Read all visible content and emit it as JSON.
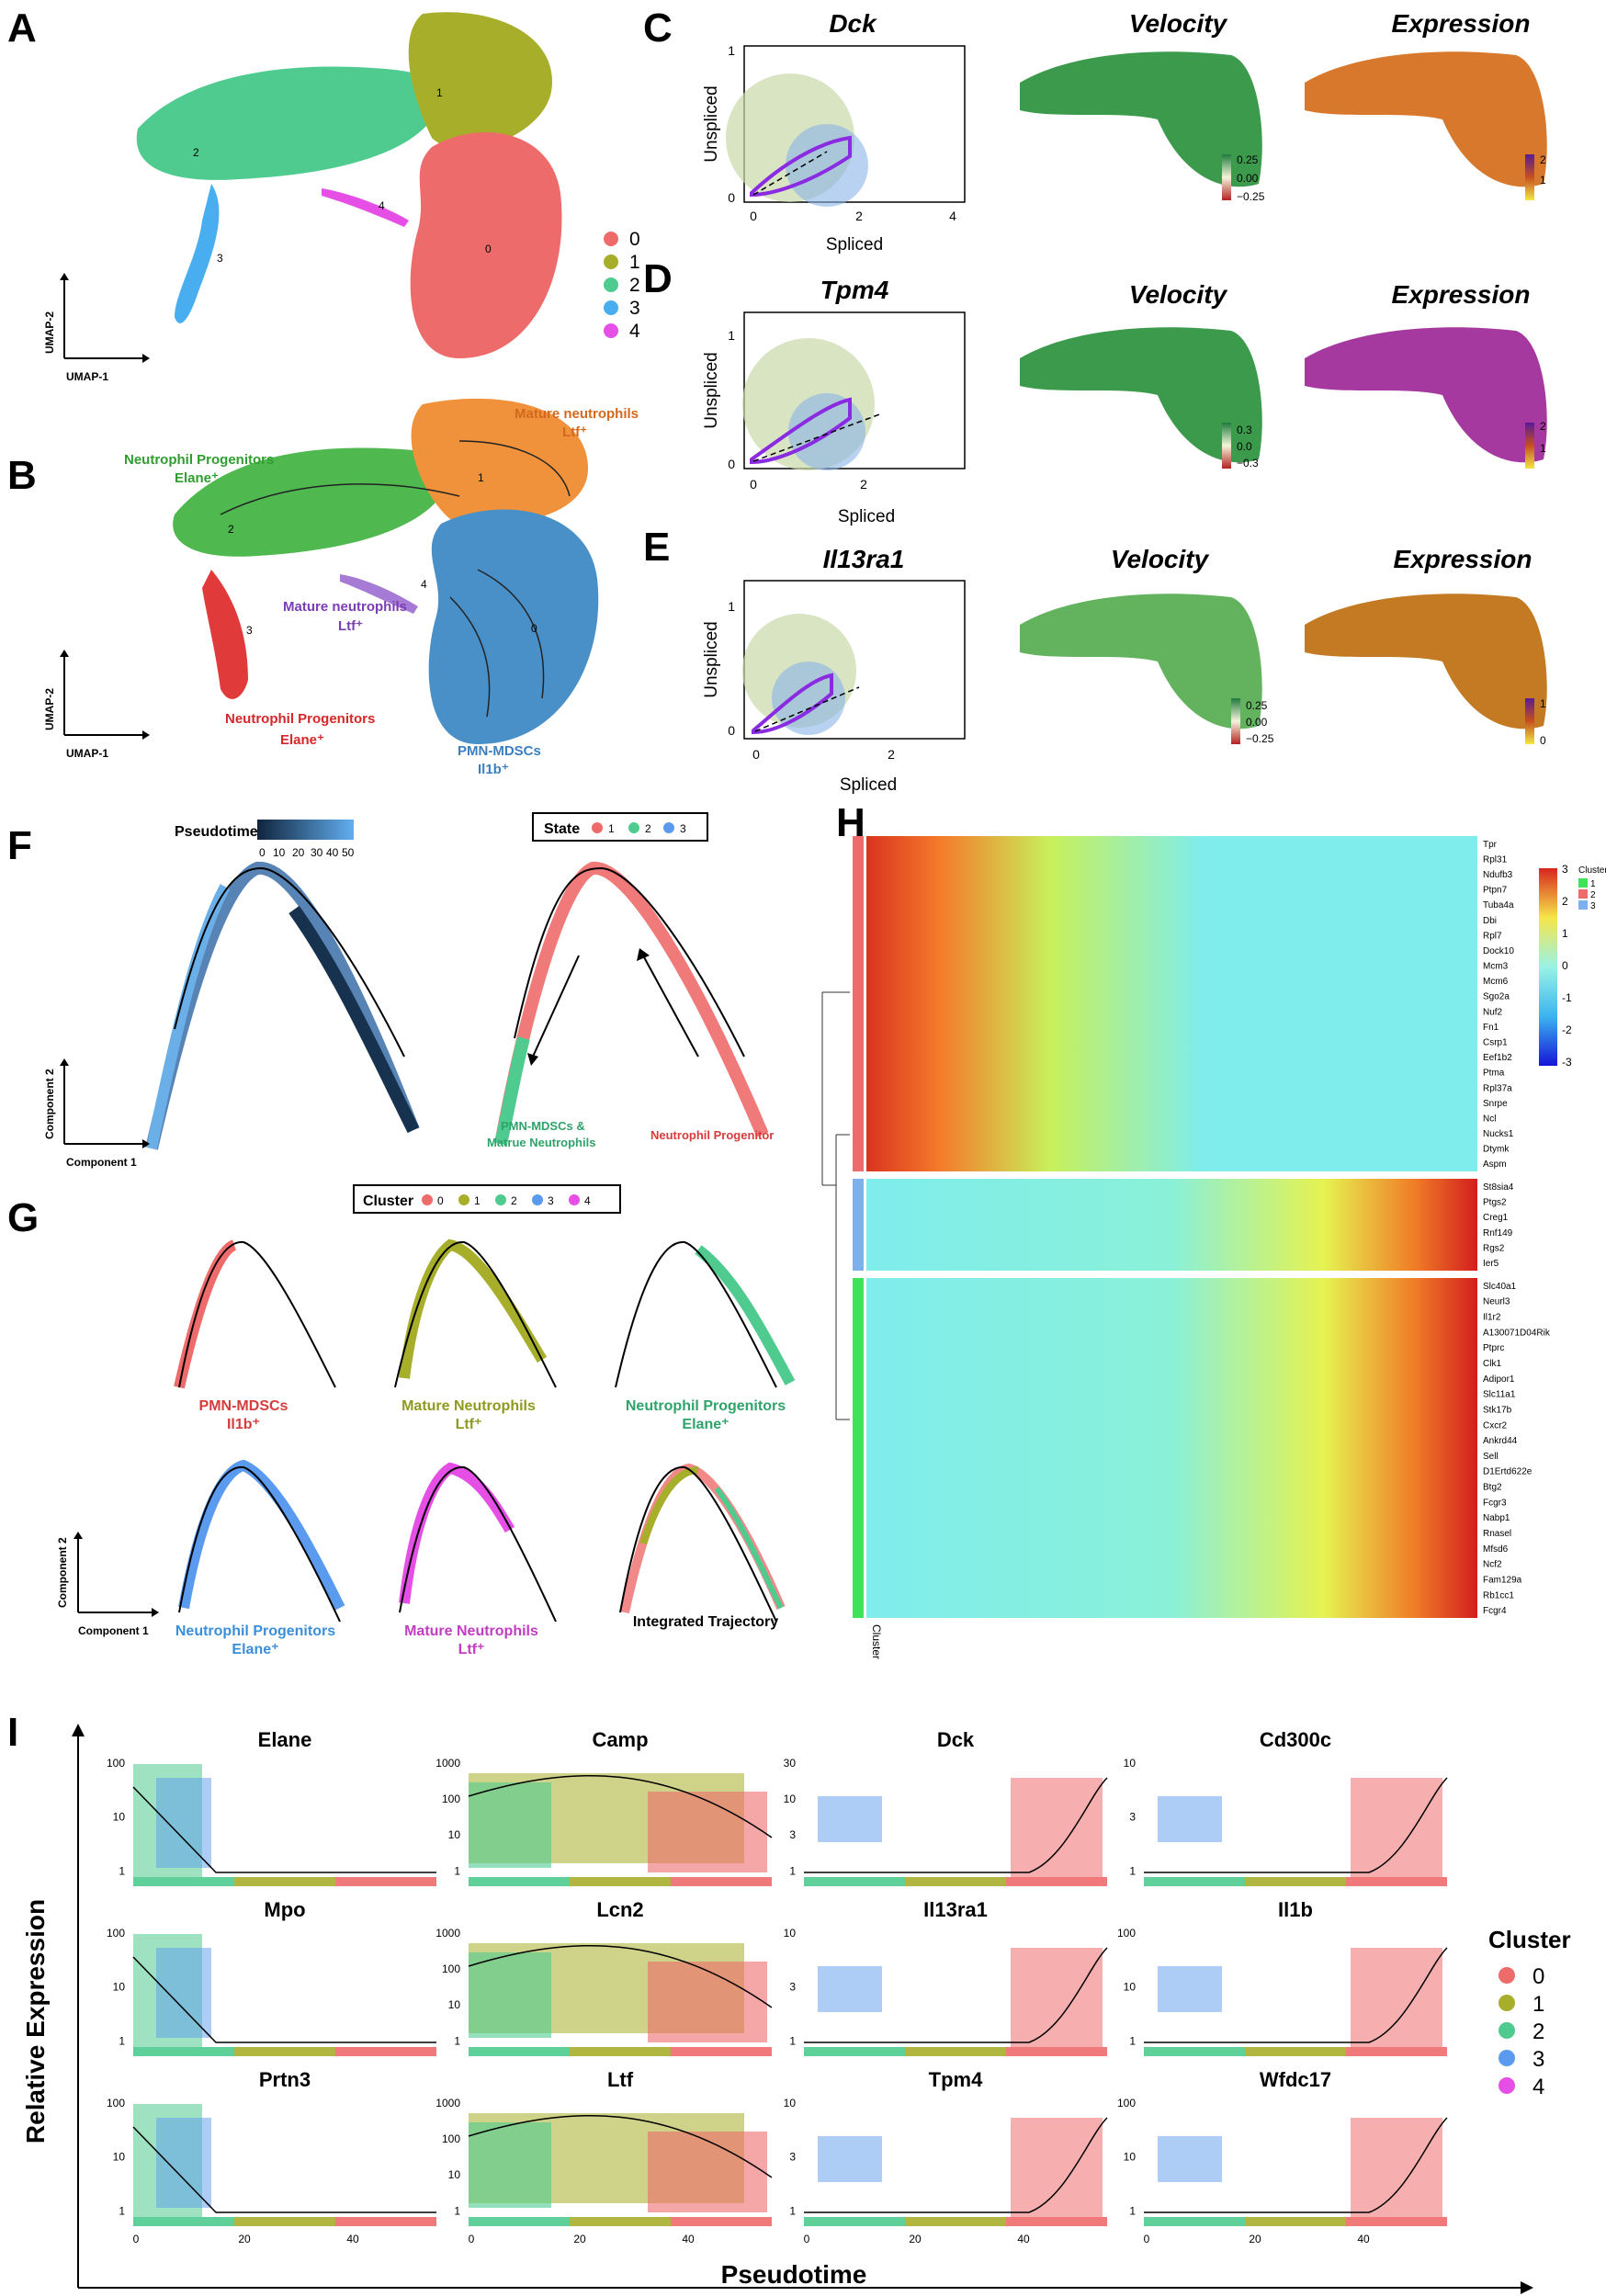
{
  "panels": {
    "A": {
      "label": "A",
      "axis_x": "UMAP-1",
      "axis_y": "UMAP-2",
      "clusters": [
        {
          "id": "0",
          "color": "#EE6B6B"
        },
        {
          "id": "1",
          "color": "#A7AE2A"
        },
        {
          "id": "2",
          "color": "#4FCB8F"
        },
        {
          "id": "3",
          "color": "#49AEEF"
        },
        {
          "id": "4",
          "color": "#E64FE6"
        }
      ]
    },
    "B": {
      "label": "B",
      "axis_x": "UMAP-1",
      "axis_y": "UMAP-2",
      "annotations": [
        {
          "text": "Mature neutrophils",
          "sub": "Ltf⁺",
          "color": "#D2691E"
        },
        {
          "text": "Neutrophil Progenitors",
          "sub": "Elane⁺",
          "color": "#2E9E2E"
        },
        {
          "text": "Mature neutrophils",
          "sub": "Ltf⁺",
          "color": "#7A3DB5"
        },
        {
          "text": "Neutrophil Progenitors",
          "sub": "Elane⁺",
          "color": "#D62728"
        },
        {
          "text": "PMN-MDSCs",
          "sub": "Il1b⁺",
          "color": "#3A7FBF"
        }
      ],
      "cluster_numbers": [
        "0",
        "1",
        "2",
        "3",
        "4"
      ]
    },
    "C": {
      "label": "C",
      "gene": "Dck",
      "yticks": [
        "1",
        "0"
      ],
      "xticks": [
        "0",
        "2",
        "4"
      ],
      "velocity_ticks": [
        "0.25",
        "0.00",
        "−0.25"
      ],
      "expr_ticks": [
        "2",
        "1"
      ]
    },
    "D": {
      "label": "D",
      "gene": "Tpm4",
      "yticks": [
        "1",
        "0"
      ],
      "xticks": [
        "0",
        "2"
      ],
      "velocity_ticks": [
        "0.3",
        "0.0",
        "−0.3"
      ],
      "expr_ticks": [
        "2",
        "1"
      ]
    },
    "E": {
      "label": "E",
      "gene": "Il13ra1",
      "yticks": [
        "1",
        "0"
      ],
      "xticks": [
        "0",
        "2"
      ],
      "velocity_ticks": [
        "0.25",
        "0.00",
        "−0.25"
      ],
      "expr_ticks": [
        "1",
        "0"
      ]
    },
    "CDE_common": {
      "xlabel": "Spliced",
      "ylabel": "Unspliced",
      "velocity_title": "Velocity",
      "expression_title": "Expression"
    },
    "F": {
      "label": "F",
      "pseudotime_title": "Pseudotime",
      "pseudotime_ticks": [
        "0",
        "10",
        "20",
        "30",
        "40",
        "50"
      ],
      "state_title": "State",
      "states": [
        {
          "id": "1",
          "color": "#EE6B6B"
        },
        {
          "id": "2",
          "color": "#4FCB8F"
        },
        {
          "id": "3",
          "color": "#5B9BEF"
        }
      ],
      "branch_left": "PMN-MDSCs &",
      "branch_left2": "Matrue Neutrophils",
      "branch_right": "Neutrophil Progenitor",
      "axis_x": "Component 1",
      "axis_y": "Component 2"
    },
    "G": {
      "label": "G",
      "cluster_title": "Cluster",
      "clusters": [
        "0",
        "1",
        "2",
        "3",
        "4"
      ],
      "facets": [
        {
          "line1": "PMN-MDSCs",
          "line2": "Il1b⁺",
          "color": "#D63C3C"
        },
        {
          "line1": "Mature Neutrophils",
          "line2": "Ltf⁺",
          "color": "#8E9A1E"
        },
        {
          "line1": "Neutrophil Progenitors",
          "line2": "Elane⁺",
          "color": "#2FA36B"
        },
        {
          "line1": "Neutrophil Progenitors",
          "line2": "Elane⁺",
          "color": "#3B8FD9"
        },
        {
          "line1": "Mature Neutrophils",
          "line2": "Ltf⁺",
          "color": "#C13DC1"
        },
        {
          "line1": "Integrated Trajectory",
          "line2": "",
          "color": "#000000"
        }
      ],
      "axis_x": "Component 1",
      "axis_y": "Component 2"
    },
    "H": {
      "label": "H",
      "genes_group1": [
        "Tpr",
        "Rpl31",
        "Ndufb3",
        "Ptpn7",
        "Tuba4a",
        "Dbi",
        "Rpl7",
        "Dock10",
        "Mcm3",
        "Mcm6",
        "Sgo2a",
        "Nuf2",
        "Fn1",
        "Csrp1",
        "Eef1b2",
        "Ptma",
        "Rpl37a",
        "Snrpe",
        "Ncl",
        "Nucks1",
        "Dtymk",
        "Aspm"
      ],
      "genes_group2": [
        "St8sia4",
        "Ptgs2",
        "Creg1",
        "Rnf149",
        "Rgs2",
        "Ier5"
      ],
      "genes_group3": [
        "Slc40a1",
        "Neurl3",
        "Il1r2",
        "A130071D04Rik",
        "Ptprc",
        "Clk1",
        "Adipor1",
        "Slc11a1",
        "Stk17b",
        "Cxcr2",
        "Ankrd44",
        "Sell",
        "D1Ertd622e",
        "Btg2",
        "Fcgr3",
        "Nabp1",
        "Rnasel",
        "Mfsd6",
        "Ncf2",
        "Fam129a",
        "Rb1cc1",
        "Fcgr4"
      ],
      "scale_ticks": [
        "3",
        "2",
        "1",
        "0",
        "-1",
        "-2",
        "-3"
      ],
      "cluster_legend_title": "Cluster",
      "cluster_legend": [
        {
          "id": "1",
          "color": "#3FE35A"
        },
        {
          "id": "2",
          "color": "#EE6B6B"
        },
        {
          "id": "3",
          "color": "#7FB0EE"
        }
      ],
      "cluster_axis_label": "Cluster"
    },
    "I": {
      "label": "I",
      "ylabel": "Relative Expression",
      "xlabel": "Pseudotime",
      "cluster_title": "Cluster",
      "clusters": [
        {
          "id": "0",
          "color": "#EE6B6B"
        },
        {
          "id": "1",
          "color": "#A7AE2A"
        },
        {
          "id": "2",
          "color": "#4FCB8F"
        },
        {
          "id": "3",
          "color": "#5B9BEF"
        },
        {
          "id": "4",
          "color": "#E64FE6"
        }
      ],
      "xticks": [
        "0",
        "20",
        "40"
      ],
      "genes": [
        {
          "name": "Elane",
          "yticks": [
            "100",
            "10",
            "1"
          ]
        },
        {
          "name": "Camp",
          "yticks": [
            "1000",
            "100",
            "10",
            "1"
          ]
        },
        {
          "name": "Dck",
          "yticks": [
            "30",
            "10",
            "3",
            "1"
          ]
        },
        {
          "name": "Cd300c",
          "yticks": [
            "10",
            "3",
            "1"
          ]
        },
        {
          "name": "Mpo",
          "yticks": [
            "100",
            "10",
            "1"
          ]
        },
        {
          "name": "Lcn2",
          "yticks": [
            "1000",
            "100",
            "10",
            "1"
          ]
        },
        {
          "name": "Il13ra1",
          "yticks": [
            "10",
            "3",
            "1"
          ]
        },
        {
          "name": "Il1b",
          "yticks": [
            "100",
            "10",
            "1"
          ]
        },
        {
          "name": "Prtn3",
          "yticks": [
            "100",
            "10",
            "1"
          ]
        },
        {
          "name": "Ltf",
          "yticks": [
            "1000",
            "100",
            "10",
            "1"
          ]
        },
        {
          "name": "Tpm4",
          "yticks": [
            "10",
            "3",
            "1"
          ]
        },
        {
          "name": "Wfdc17",
          "yticks": [
            "100",
            "10",
            "1"
          ]
        }
      ]
    }
  }
}
